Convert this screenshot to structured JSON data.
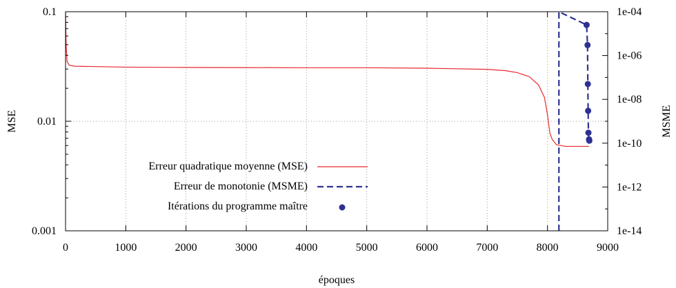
{
  "chart_data": {
    "type": "line",
    "xlabel": "époques",
    "ylabel": "MSE",
    "y2label": "MSME",
    "xlim": [
      0,
      9000
    ],
    "ylim": [
      0.001,
      0.1
    ],
    "y2lim": [
      1e-14,
      0.0001
    ],
    "yscale": "log",
    "y2scale": "log",
    "grid": true,
    "legend_position": "bottom-left",
    "x_ticks": [
      {
        "value": 0,
        "label": "0"
      },
      {
        "value": 1000,
        "label": "1000"
      },
      {
        "value": 2000,
        "label": "2000"
      },
      {
        "value": 3000,
        "label": "3000"
      },
      {
        "value": 4000,
        "label": "4000"
      },
      {
        "value": 5000,
        "label": "5000"
      },
      {
        "value": 6000,
        "label": "6000"
      },
      {
        "value": 7000,
        "label": "7000"
      },
      {
        "value": 8000,
        "label": "8000"
      },
      {
        "value": 9000,
        "label": "9000"
      }
    ],
    "y_ticks": [
      {
        "value": 0.1,
        "label": "0.1"
      },
      {
        "value": 0.01,
        "label": "0.01"
      },
      {
        "value": 0.001,
        "label": "0.001"
      }
    ],
    "y2_ticks": [
      {
        "value": 0.0001,
        "label": "1e-04"
      },
      {
        "value": 1e-06,
        "label": "1e-06"
      },
      {
        "value": 1e-08,
        "label": "1e-08"
      },
      {
        "value": 1e-10,
        "label": "1e-10"
      },
      {
        "value": 1e-12,
        "label": "1e-12"
      },
      {
        "value": 1e-14,
        "label": "1e-14"
      }
    ],
    "series": [
      {
        "name": "Erreur quadratique moyenne (MSE)",
        "axis": "left",
        "style": "solid",
        "color": "#e8262c",
        "points": [
          [
            0,
            0.1
          ],
          [
            10,
            0.05
          ],
          [
            25,
            0.035
          ],
          [
            60,
            0.0325
          ],
          [
            150,
            0.0318
          ],
          [
            1000,
            0.0312
          ],
          [
            2000,
            0.031
          ],
          [
            3000,
            0.0309
          ],
          [
            4000,
            0.0308
          ],
          [
            5000,
            0.0308
          ],
          [
            6000,
            0.0305
          ],
          [
            7000,
            0.0298
          ],
          [
            7300,
            0.029
          ],
          [
            7500,
            0.0278
          ],
          [
            7700,
            0.0255
          ],
          [
            7850,
            0.0215
          ],
          [
            7950,
            0.0165
          ],
          [
            8000,
            0.0115
          ],
          [
            8040,
            0.0078
          ],
          [
            8080,
            0.0068
          ],
          [
            8150,
            0.0061
          ],
          [
            8300,
            0.0059
          ],
          [
            8690,
            0.0059
          ]
        ]
      },
      {
        "name": "Erreur de monotonie (MSME)",
        "axis": "right",
        "style": "dashed",
        "color": "#2e3192",
        "points": [
          [
            8190,
            1e-14
          ],
          [
            8190,
            0.0001
          ],
          [
            8650,
            2.5e-05
          ],
          [
            8665,
            3e-06
          ],
          [
            8670,
            5e-08
          ],
          [
            8675,
            3e-09
          ],
          [
            8680,
            3e-10
          ],
          [
            8690,
            1.5e-10
          ]
        ]
      },
      {
        "name": "Itérations du programme maître",
        "axis": "right",
        "style": "points",
        "color": "#2e3192",
        "points": [
          [
            8650,
            2.5e-05
          ],
          [
            8665,
            3e-06
          ],
          [
            8670,
            5e-08
          ],
          [
            8675,
            3e-09
          ],
          [
            8680,
            3e-10
          ],
          [
            8690,
            1.5e-10
          ],
          [
            8695,
            1.3e-10
          ]
        ]
      }
    ]
  }
}
